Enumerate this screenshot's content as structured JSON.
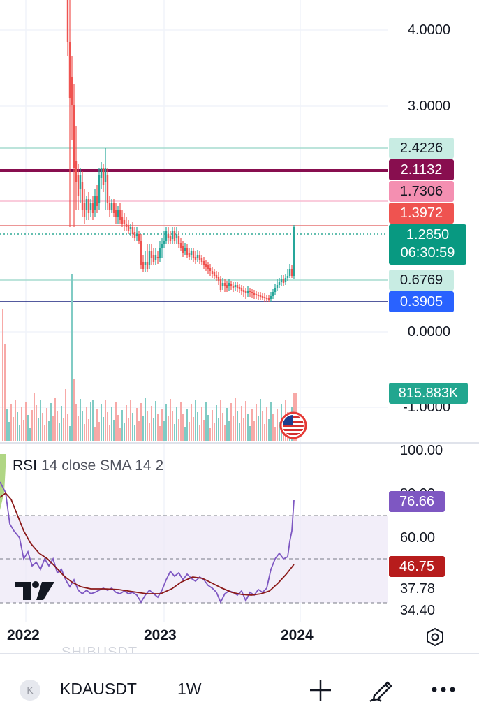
{
  "symbol_bar": {
    "symbol_badge": "K",
    "symbol": "KDAUSDT",
    "interval": "1W"
  },
  "ghost_symbol": "SHIBUSDT",
  "price_axis": {
    "labels": [
      "4.0000",
      "3.0000",
      "0.0000",
      "-1.0000"
    ],
    "tags": [
      {
        "value": "2.4226",
        "bg": "#c8ece3",
        "fg": "#131722"
      },
      {
        "value": "2.1132",
        "bg": "#880e4f",
        "fg": "#ffffff"
      },
      {
        "value": "1.7306",
        "bg": "#f48fb1",
        "fg": "#131722"
      },
      {
        "value": "1.3972",
        "bg": "#ef5350",
        "fg": "#ffffff"
      },
      {
        "value": "1.2850",
        "countdown": "06:30:59",
        "bg": "#089981",
        "fg": "#ffffff"
      },
      {
        "value": "0.6769",
        "bg": "#c8ece3",
        "fg": "#131722"
      },
      {
        "value": "0.3905",
        "bg": "#2962ff",
        "fg": "#ffffff"
      }
    ],
    "volume_tag": {
      "value": "815.883K",
      "bg": "#22a68f",
      "fg": "#ffffff"
    }
  },
  "rsi_pane": {
    "legend_name": "RSI",
    "legend_params": "14 close SMA 14 2",
    "axis_labels": [
      "100.00",
      "60.00",
      "37.78",
      "34.40"
    ],
    "partial_label": "80.00",
    "rsi_tag": {
      "value": "76.66",
      "bg": "#7e57c2",
      "fg": "#ffffff"
    },
    "sma_tag": {
      "value": "46.75",
      "bg": "#b71c1c",
      "fg": "#ffffff"
    },
    "rsi_color": "#7e57c2",
    "sma_color": "#8b1a1a"
  },
  "time_axis": {
    "years": [
      "2022",
      "2023",
      "2024"
    ]
  },
  "colors": {
    "up": "#26a69a",
    "down": "#ef5350",
    "grid": "#f0f3fa"
  },
  "icons": {
    "settings": "hexagon-gear-icon",
    "add": "plus-icon",
    "draw": "pen-icon",
    "more": "more-horizontal-icon",
    "event": "us-flag-icon",
    "logo": "tradingview-logo-icon"
  }
}
